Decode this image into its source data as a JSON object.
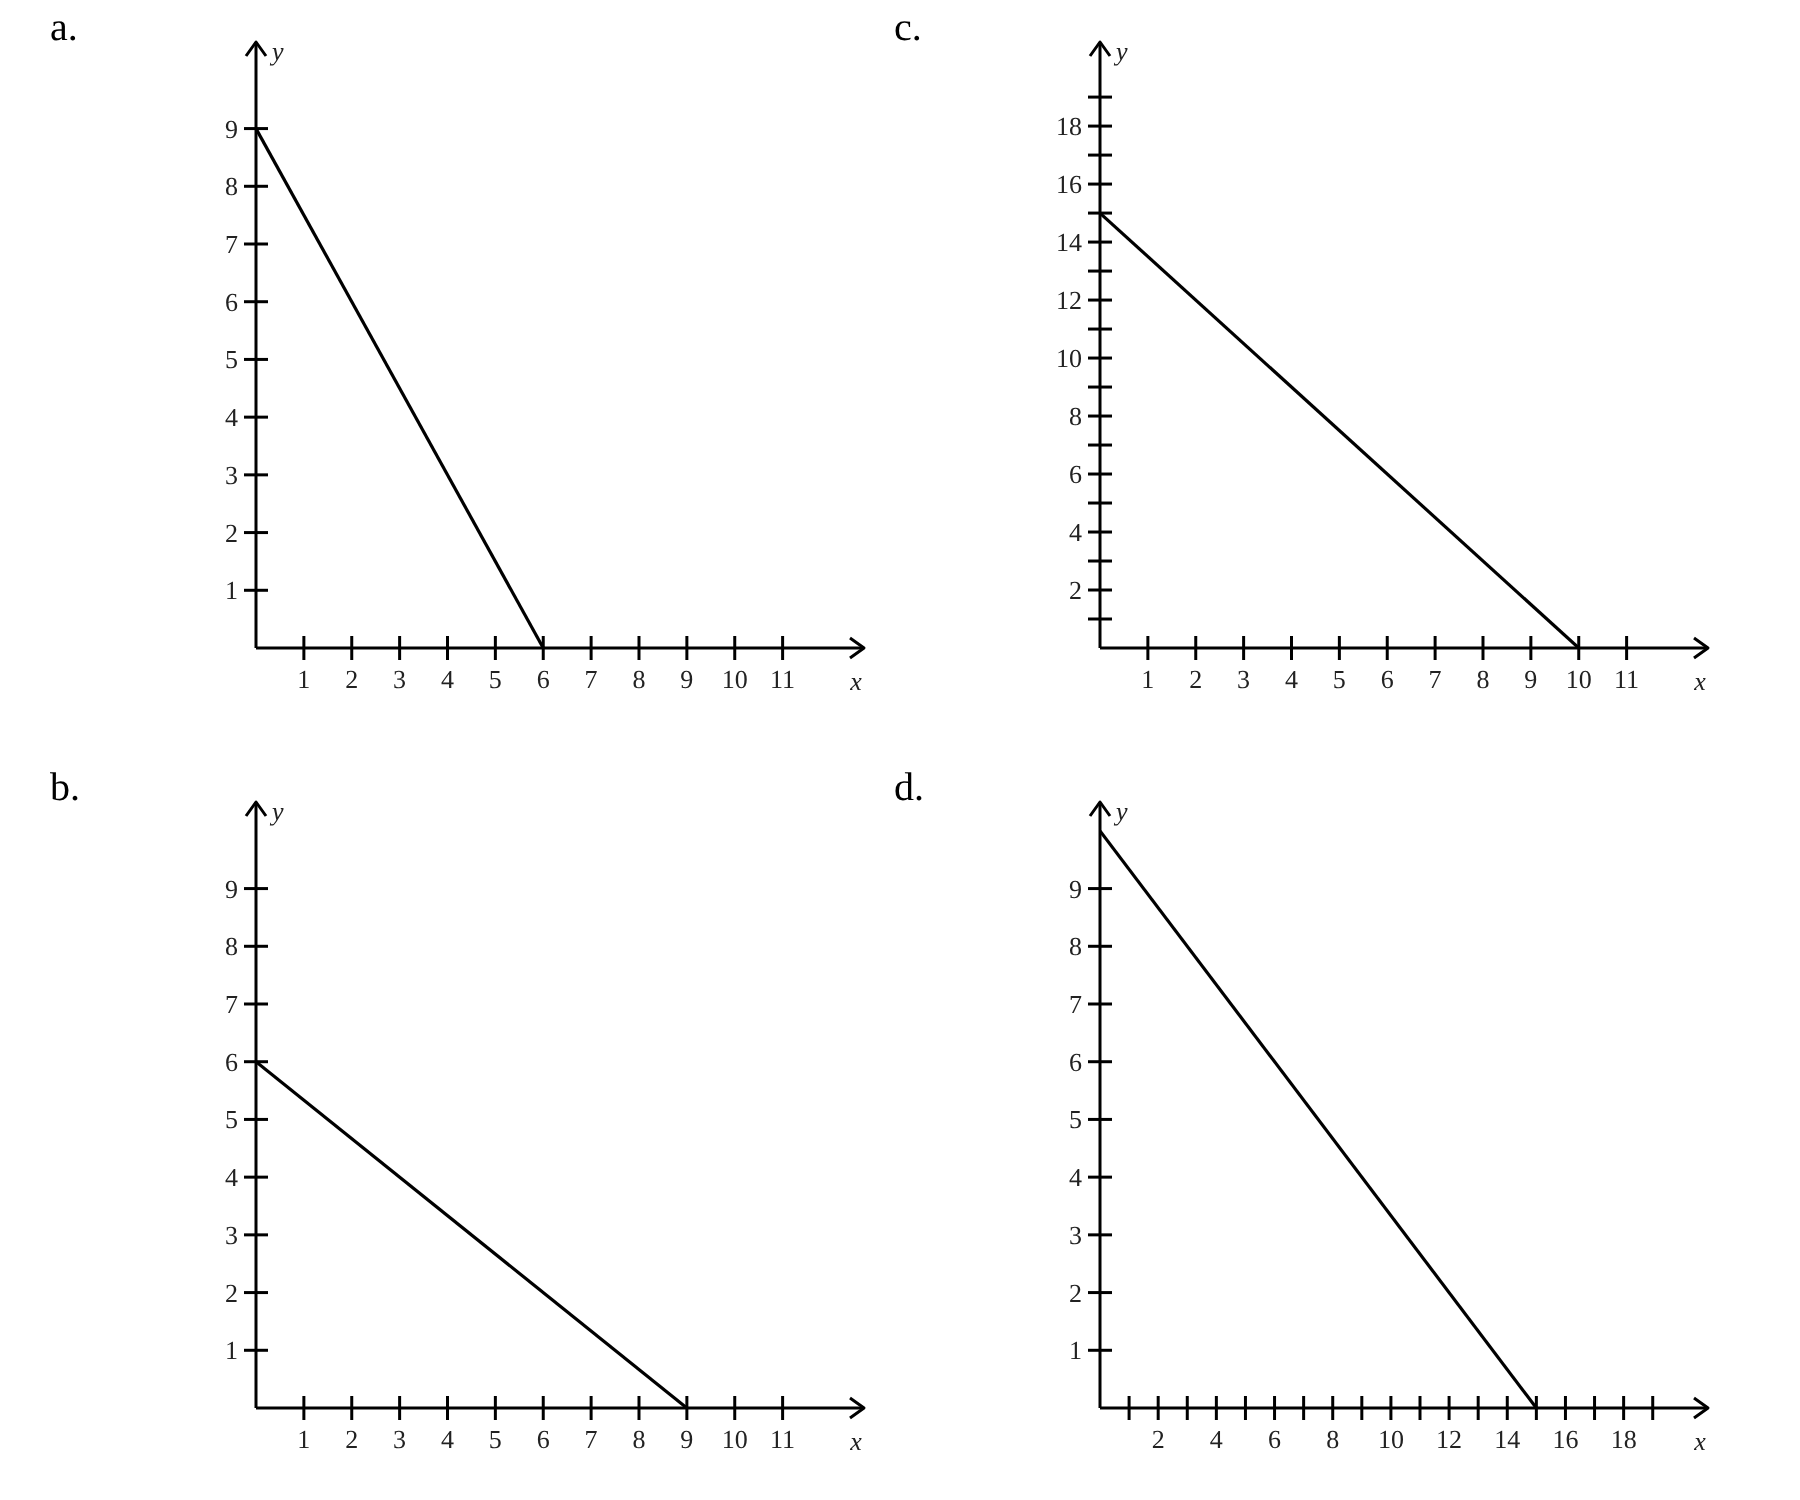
{
  "chart_data": [
    {
      "type": "line",
      "title": "a.",
      "xlabel": "x",
      "ylabel": "y",
      "x": [
        0,
        6
      ],
      "series": [
        {
          "color": "#000000",
          "values": [
            9,
            0
          ]
        }
      ],
      "xlim": [
        0,
        12.7
      ],
      "ylim": [
        0,
        10.5
      ],
      "xticks": [
        1,
        2,
        3,
        4,
        5,
        6,
        7,
        8,
        9,
        10,
        11
      ],
      "yticks": [
        1,
        2,
        3,
        4,
        5,
        6,
        7,
        8,
        9
      ],
      "marker": "none",
      "line_style": "solid"
    },
    {
      "type": "line",
      "title": "c.",
      "xlabel": "x",
      "ylabel": "y",
      "x": [
        0,
        10
      ],
      "series": [
        {
          "color": "#000000",
          "values": [
            15,
            0
          ]
        }
      ],
      "xlim": [
        0,
        12.7
      ],
      "ylim": [
        0,
        20.9
      ],
      "xticks": [
        1,
        2,
        3,
        4,
        5,
        6,
        7,
        8,
        9,
        10,
        11
      ],
      "yticks": [
        {
          "value": 1,
          "label": null
        },
        2,
        {
          "value": 3,
          "label": null
        },
        4,
        {
          "value": 5,
          "label": null
        },
        6,
        {
          "value": 7,
          "label": null
        },
        8,
        {
          "value": 9,
          "label": null
        },
        10,
        {
          "value": 11,
          "label": null
        },
        12,
        {
          "value": 13,
          "label": null
        },
        14,
        {
          "value": 15,
          "label": null
        },
        16,
        {
          "value": 17,
          "label": null
        },
        18,
        {
          "value": 19,
          "label": null
        }
      ],
      "marker": "none",
      "line_style": "solid"
    },
    {
      "type": "line",
      "title": "b.",
      "xlabel": "x",
      "ylabel": "y",
      "x": [
        0,
        9
      ],
      "series": [
        {
          "color": "#000000",
          "values": [
            6,
            0
          ]
        }
      ],
      "xlim": [
        0,
        12.7
      ],
      "ylim": [
        0,
        10.5
      ],
      "xticks": [
        1,
        2,
        3,
        4,
        5,
        6,
        7,
        8,
        9,
        10,
        11
      ],
      "yticks": [
        1,
        2,
        3,
        4,
        5,
        6,
        7,
        8,
        9
      ],
      "marker": "none",
      "line_style": "solid"
    },
    {
      "type": "line",
      "title": "d.",
      "xlabel": "x",
      "ylabel": "y",
      "x": [
        0,
        15
      ],
      "series": [
        {
          "color": "#000000",
          "values": [
            10,
            0
          ]
        }
      ],
      "xlim": [
        0,
        20.9
      ],
      "ylim": [
        0,
        10.5
      ],
      "xticks": [
        {
          "value": 1,
          "label": null
        },
        2,
        {
          "value": 3,
          "label": null
        },
        4,
        {
          "value": 5,
          "label": null
        },
        6,
        {
          "value": 7,
          "label": null
        },
        8,
        {
          "value": 9,
          "label": null
        },
        10,
        {
          "value": 11,
          "label": null
        },
        12,
        {
          "value": 13,
          "label": null
        },
        14,
        {
          "value": 15,
          "label": null
        },
        16,
        {
          "value": 17,
          "label": null
        },
        18,
        {
          "value": 19,
          "label": null
        }
      ],
      "yticks": [
        1,
        2,
        3,
        4,
        5,
        6,
        7,
        8,
        9
      ],
      "marker": "none",
      "line_style": "solid"
    }
  ]
}
